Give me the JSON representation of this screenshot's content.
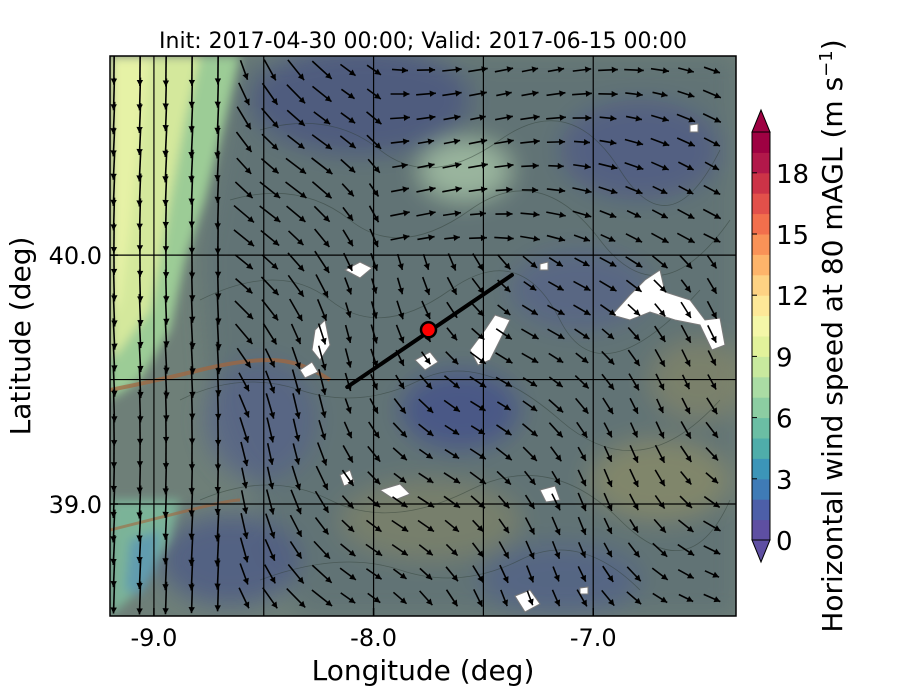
{
  "figure": {
    "title": "Init: 2017-04-30 00:00; Valid: 2017-06-15 00:00",
    "xlabel": "Longitude (deg)",
    "ylabel": "Latitude (deg)",
    "xticks": [
      "-9.0",
      "-8.0",
      "-7.0"
    ],
    "yticks": [
      "40.0",
      "39.0"
    ],
    "xlim": [
      -9.2,
      -6.35
    ],
    "ylim": [
      38.55,
      40.8
    ],
    "colorbar": {
      "label": "Horizontal wind speed at 80 mAGL (m s",
      "label_sup": "−1",
      "label_close": ")",
      "min": -1,
      "max": 20,
      "ticks": [
        "0",
        "3",
        "6",
        "9",
        "12",
        "15",
        "18"
      ],
      "extend": "both"
    },
    "cross_section": {
      "start": [
        -8.12,
        39.47
      ],
      "end": [
        -7.37,
        39.92
      ]
    },
    "site_marker": {
      "lon": -7.75,
      "lat": 39.7,
      "color": "#ff0000"
    },
    "colors": {
      "arrows": "#000000",
      "gridlines": "#000000",
      "marker_fill": "#ff0000",
      "transect": "#000000"
    }
  },
  "chart_data": {
    "type": "heatmap",
    "title": "Init: 2017-04-30 00:00; Valid: 2017-06-15 00:00",
    "xlabel": "Longitude (deg)",
    "ylabel": "Latitude (deg)",
    "xlim": [
      -9.2,
      -6.35
    ],
    "ylim": [
      38.55,
      40.8
    ],
    "colorbar_range": [
      -1,
      20
    ],
    "field": "Horizontal wind speed at 80 mAGL",
    "wind_speed_regions": [
      {
        "area": "northwest coastal strip",
        "speed": 9
      },
      {
        "area": "coastal band",
        "speed": 7
      },
      {
        "area": "interior",
        "speed": 4
      },
      {
        "area": "central low",
        "speed": 2
      },
      {
        "area": "northern peak",
        "speed": 6
      },
      {
        "area": "southwest coast",
        "speed": 3
      }
    ],
    "vector_field": "southward winds over the west, south-eastward winds over the interior, east/southeast over the north-east"
  }
}
